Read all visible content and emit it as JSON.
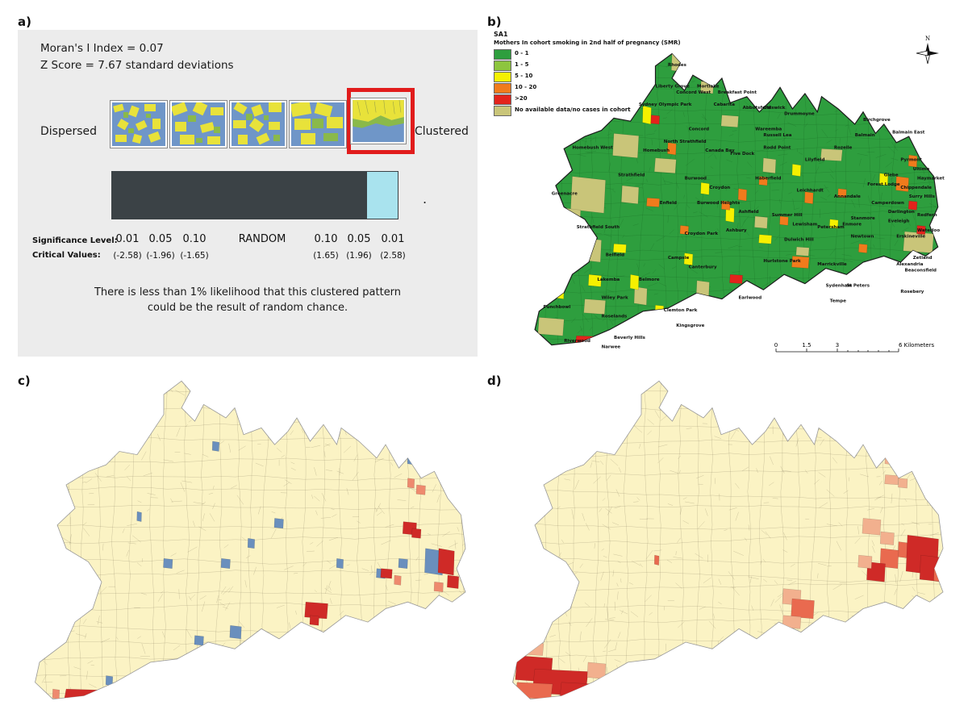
{
  "panel_labels": {
    "a": "a)",
    "b": "b)",
    "c": "c)",
    "d": "d)"
  },
  "panel_a": {
    "morans_i": "Moran's I Index = 0.07",
    "z_score": "Z Score = 7.67 standard deviations",
    "dispersed": "Dispersed",
    "clustered": "Clustered",
    "random": "RANDOM",
    "dot": ".",
    "sig_level_label": "Significance Level:",
    "crit_values_label": "Critical Values:",
    "sig_levels": [
      "0.01",
      "0.05",
      "0.10",
      "0.10",
      "0.05",
      "0.01"
    ],
    "crit_values": [
      "(-2.58)",
      "(-1.96)",
      "(-1.65)",
      "(1.65)",
      "(1.96)",
      "(2.58)"
    ],
    "conclusion_line1": "There is less than 1% likelihood that this clustered pattern",
    "conclusion_line2": "could be the result of random chance.",
    "selected_category": "Clustered",
    "colors": {
      "bar": "#3b4246",
      "highlight": "#a9e3ee",
      "selection": "#e11c1c"
    }
  },
  "panel_b": {
    "map_title": "SA1",
    "legend_title": "Mothers In cohort smoking in 2nd half of pregnancy (SMR)",
    "legend": [
      {
        "label": "0 - 1",
        "color": "#2e9e3e"
      },
      {
        "label": "1 - 5",
        "color": "#8dc53e"
      },
      {
        "label": "5 - 10",
        "color": "#f5f000"
      },
      {
        "label": "10 - 20",
        "color": "#f07b1c"
      },
      {
        "label": ">20",
        "color": "#e3231c"
      },
      {
        "label": "No available data/no cases in cohort",
        "color": "#c9c579"
      }
    ],
    "north": "N",
    "scale_labels": [
      "0",
      "1.5",
      "3",
      "6 Kilometers"
    ],
    "places": [
      "Rhodes",
      "Liberty Grove",
      "Concord West",
      "Mortlake",
      "Breakfast Point",
      "Sydney Olympic Park",
      "Cabarita",
      "Abbotsford",
      "Chiswick",
      "Drummoyne",
      "Birchgrove",
      "Balmain",
      "Balmain East",
      "Concord",
      "Wareemba",
      "Russell Lea",
      "Homebush West",
      "North Strathfield",
      "Rodd Point",
      "Rozelle",
      "Homebush",
      "Canada Bay",
      "Five Dock",
      "Lilyfield",
      "Pyrmont",
      "Ultimo",
      "Haymarket",
      "Strathfield",
      "Burwood",
      "Croydon",
      "Haberfield",
      "Leichhardt",
      "Annandale",
      "Glebe",
      "Forest Lodge",
      "Chippendale",
      "Surry Hills",
      "Greenacre",
      "Enfield",
      "Burwood Heights",
      "Ashfield",
      "Summer Hill",
      "Camperdown",
      "Darlington",
      "Redfern",
      "Strathfield South",
      "Lewisham",
      "Petersham",
      "Stanmore",
      "Eveleigh",
      "Croydon Park",
      "Ashbury",
      "Dulwich Hill",
      "Newtown",
      "Erskineville",
      "Waterloo",
      "Belfield",
      "Enmore",
      "Zetland",
      "Campsie",
      "Canterbury",
      "Hurlstone Park",
      "Marrickville",
      "Alexandria",
      "Beaconsfield",
      "Lakemba",
      "Belmore",
      "Sydenham",
      "St Peters",
      "Rosebery",
      "Wiley Park",
      "Earlwood",
      "Tempe",
      "Punchbowl",
      "Clemton Park",
      "Roselands",
      "Kingsgrove",
      "Beverly Hills",
      "Riverwood",
      "Narwee"
    ]
  },
  "panel_c": {
    "colors": {
      "base": "#fbf3c4",
      "high": "#cf2a27",
      "mid": "#ee8a6e",
      "low": "#6a8fbd"
    }
  },
  "panel_d": {
    "colors": {
      "base": "#fbf3c4",
      "high": "#cf2a27",
      "mid": "#e96a4f",
      "low": "#f2b08e"
    }
  }
}
